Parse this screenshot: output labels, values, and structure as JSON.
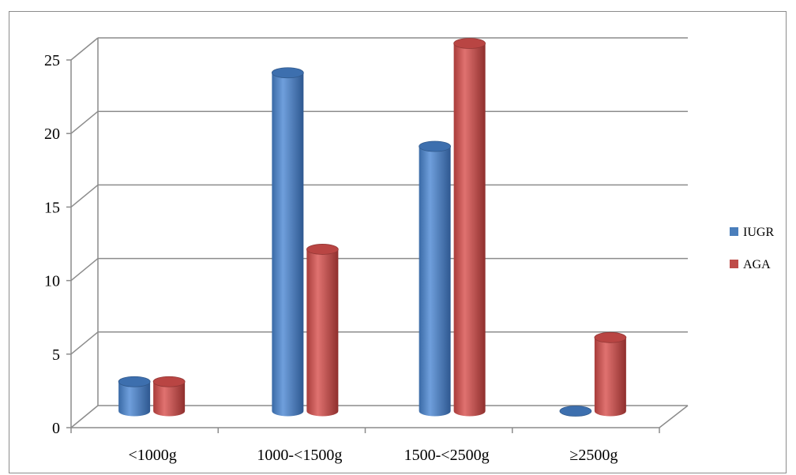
{
  "chart_data": {
    "type": "bar",
    "categories": [
      "<1000g",
      "1000-<1500g",
      "1500-<2500g",
      "≥2500g"
    ],
    "series": [
      {
        "name": "IUGR",
        "values": [
          2,
          23,
          18,
          0
        ],
        "color": "#4a7ebb"
      },
      {
        "name": "AGA",
        "values": [
          2,
          11,
          25,
          5
        ],
        "color": "#be4b48"
      }
    ],
    "ylim": [
      0,
      25
    ],
    "yticks": [
      0,
      5,
      10,
      15,
      20,
      25
    ],
    "grid": true,
    "style": "3d-cylinder",
    "legend_position": "right"
  }
}
